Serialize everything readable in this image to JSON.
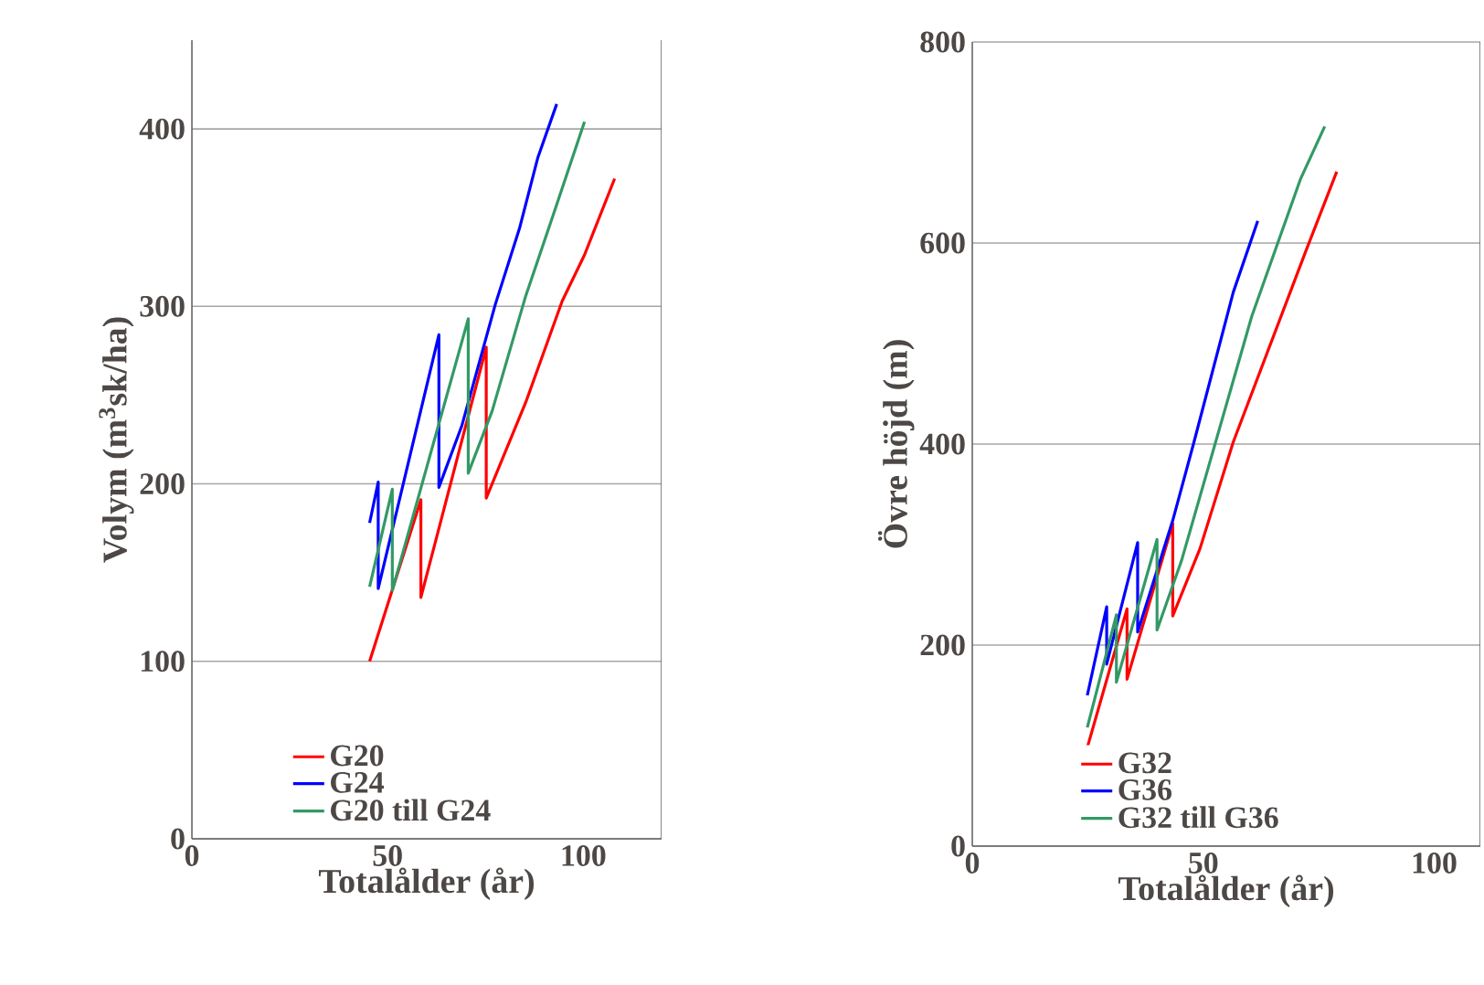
{
  "chart_data": [
    {
      "type": "line",
      "xlabel": "Totalålder (år)",
      "ylabel": "Volym (m$^{3}$sk/ha)",
      "xlim": [
        0,
        120
      ],
      "ylim": [
        0,
        450
      ],
      "xticks": [
        0,
        50,
        100
      ],
      "yticks": [
        0,
        100,
        200,
        300,
        400
      ],
      "grid": "y",
      "legend": "bottom left",
      "marker": "none",
      "line_style": "solid",
      "series": [
        {
          "name": "G20",
          "color": "#ff0000",
          "x": [
            45.4,
            58.5,
            58.5,
            75.2,
            75.2,
            85.3,
            94.6,
            100.3,
            108
          ],
          "values": [
            100,
            191,
            136,
            277,
            192,
            246,
            303,
            329,
            372
          ]
        },
        {
          "name": "G24",
          "color": "#0000ff",
          "x": [
            45.4,
            47.6,
            47.6,
            63.1,
            63.1,
            69,
            77.5,
            83.7,
            88.4,
            93.2
          ],
          "values": [
            178,
            201,
            141,
            284,
            198,
            233,
            301,
            344,
            384,
            414
          ]
        },
        {
          "name": "G20 till G24",
          "color": "#339966",
          "x": [
            45.4,
            51.2,
            51.2,
            70.6,
            70.6,
            76.7,
            85.3,
            93,
            100.3
          ],
          "values": [
            142,
            197,
            140,
            293,
            206,
            241,
            306,
            356,
            404
          ]
        }
      ]
    },
    {
      "type": "line",
      "xlabel": "Totalålder (år)",
      "ylabel": "Övre höjd (m)",
      "xlim": [
        0,
        110
      ],
      "ylim": [
        0,
        800
      ],
      "xticks": [
        0,
        50,
        100
      ],
      "yticks": [
        0,
        200,
        400,
        600,
        800
      ],
      "grid": "y",
      "legend": "bottom left",
      "marker": "none",
      "line_style": "solid",
      "series": [
        {
          "name": "G32",
          "color": "#ff0000",
          "x": [
            24.9,
            33.5,
            33.5,
            43.4,
            43.4,
            49.3,
            56.5,
            72.3,
            78.9
          ],
          "values": [
            98,
            236,
            166,
            321,
            229,
            296,
            402,
            593,
            671
          ]
        },
        {
          "name": "G36",
          "color": "#0000ff",
          "x": [
            24.9,
            29.1,
            29.1,
            35.8,
            35.8,
            43.4,
            48,
            56.5,
            61.8
          ],
          "values": [
            150,
            238,
            181,
            302,
            213,
            324,
            402,
            551,
            622
          ]
        },
        {
          "name": "G32 till G36",
          "color": "#339966",
          "x": [
            24.9,
            31.2,
            31.2,
            40,
            40,
            45.3,
            60.5,
            71,
            76.3
          ],
          "values": [
            118,
            230,
            163,
            305,
            215,
            284,
            527,
            663,
            716
          ]
        }
      ]
    }
  ]
}
